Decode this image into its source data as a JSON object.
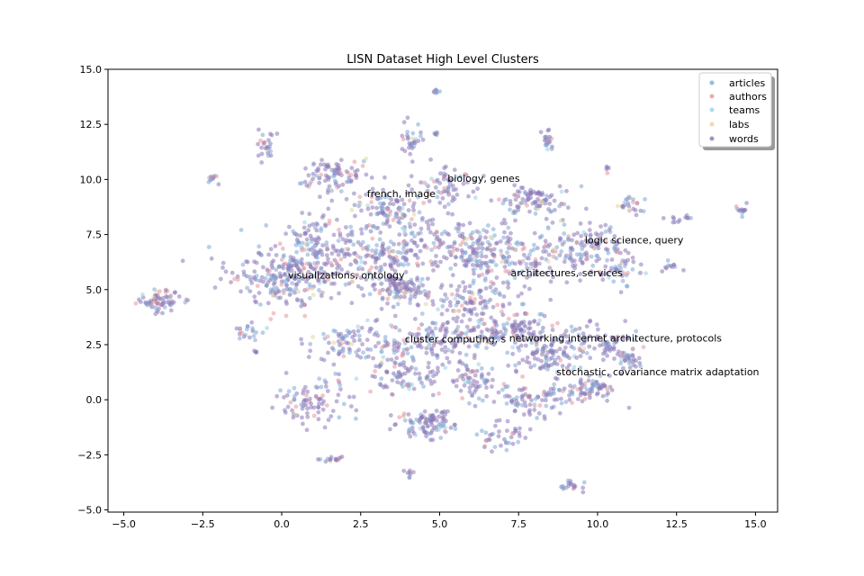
{
  "chart_data": {
    "type": "scatter",
    "title": "LISN Dataset High Level Clusters",
    "xlabel": "",
    "ylabel": "",
    "xlim": [
      -5.5,
      15.7
    ],
    "ylim": [
      -5.1,
      15.0
    ],
    "xticks": [
      -5.0,
      -2.5,
      0.0,
      2.5,
      5.0,
      7.5,
      10.0,
      12.5,
      15.0
    ],
    "yticks": [
      -5.0,
      -2.5,
      0.0,
      2.5,
      5.0,
      7.5,
      10.0,
      12.5,
      15.0
    ],
    "xtick_labels": [
      "−5.0",
      "−2.5",
      "0.0",
      "2.5",
      "5.0",
      "7.5",
      "10.0",
      "12.5",
      "15.0"
    ],
    "ytick_labels": [
      "−5.0",
      "−2.5",
      "0.0",
      "2.5",
      "5.0",
      "7.5",
      "10.0",
      "12.5",
      "15.0"
    ],
    "grid": false,
    "legend_position": "top-right",
    "series": [
      {
        "name": "articles",
        "color": "#7ea8d6"
      },
      {
        "name": "authors",
        "color": "#e8959a"
      },
      {
        "name": "teams",
        "color": "#9ccfe8"
      },
      {
        "name": "labs",
        "color": "#e6d49a"
      },
      {
        "name": "words",
        "color": "#8a78b8"
      }
    ],
    "clusters": [
      {
        "x": -3.9,
        "y": 4.5,
        "sx": 0.35,
        "sy": 0.25,
        "n": 70
      },
      {
        "x": -2.2,
        "y": 10.0,
        "sx": 0.1,
        "sy": 0.1,
        "n": 12
      },
      {
        "x": -0.5,
        "y": 11.5,
        "sx": 0.15,
        "sy": 0.3,
        "n": 25
      },
      {
        "x": 0.0,
        "y": 5.5,
        "sx": 0.9,
        "sy": 0.7,
        "n": 220
      },
      {
        "x": 1.0,
        "y": 7.0,
        "sx": 0.8,
        "sy": 0.7,
        "n": 150
      },
      {
        "x": 1.6,
        "y": 10.2,
        "sx": 0.6,
        "sy": 0.4,
        "n": 90
      },
      {
        "x": 3.4,
        "y": 8.5,
        "sx": 0.6,
        "sy": 0.5,
        "n": 110
      },
      {
        "x": 3.3,
        "y": 6.5,
        "sx": 0.7,
        "sy": 0.6,
        "n": 140
      },
      {
        "x": 3.8,
        "y": 5.0,
        "sx": 0.5,
        "sy": 0.3,
        "n": 110
      },
      {
        "x": 4.1,
        "y": 11.7,
        "sx": 0.2,
        "sy": 0.4,
        "n": 30
      },
      {
        "x": 4.9,
        "y": 14.0,
        "sx": 0.05,
        "sy": 0.05,
        "n": 8
      },
      {
        "x": 4.9,
        "y": 12.1,
        "sx": 0.05,
        "sy": 0.05,
        "n": 6
      },
      {
        "x": 5.3,
        "y": 9.7,
        "sx": 0.5,
        "sy": 0.5,
        "n": 70
      },
      {
        "x": 5.7,
        "y": 7.0,
        "sx": 0.7,
        "sy": 0.6,
        "n": 130
      },
      {
        "x": 6.0,
        "y": 4.5,
        "sx": 0.8,
        "sy": 0.6,
        "n": 120
      },
      {
        "x": 7.5,
        "y": 6.5,
        "sx": 0.9,
        "sy": 0.6,
        "n": 140
      },
      {
        "x": 8.0,
        "y": 9.0,
        "sx": 0.6,
        "sy": 0.4,
        "n": 90
      },
      {
        "x": 8.4,
        "y": 11.8,
        "sx": 0.1,
        "sy": 0.3,
        "n": 20
      },
      {
        "x": 9.5,
        "y": 7.0,
        "sx": 0.6,
        "sy": 0.6,
        "n": 110
      },
      {
        "x": 10.7,
        "y": 6.0,
        "sx": 0.4,
        "sy": 0.4,
        "n": 50
      },
      {
        "x": 11.0,
        "y": 8.8,
        "sx": 0.2,
        "sy": 0.3,
        "n": 25
      },
      {
        "x": 12.4,
        "y": 6.0,
        "sx": 0.2,
        "sy": 0.1,
        "n": 10
      },
      {
        "x": 12.6,
        "y": 8.2,
        "sx": 0.2,
        "sy": 0.1,
        "n": 12
      },
      {
        "x": 14.6,
        "y": 8.6,
        "sx": 0.1,
        "sy": 0.1,
        "n": 12
      },
      {
        "x": 10.3,
        "y": 10.5,
        "sx": 0.05,
        "sy": 0.1,
        "n": 5
      },
      {
        "x": 2.0,
        "y": 2.6,
        "sx": 0.6,
        "sy": 0.5,
        "n": 60
      },
      {
        "x": 3.4,
        "y": 2.2,
        "sx": 0.5,
        "sy": 0.6,
        "n": 80
      },
      {
        "x": 5.2,
        "y": 2.8,
        "sx": 0.7,
        "sy": 0.5,
        "n": 110
      },
      {
        "x": 7.3,
        "y": 3.2,
        "sx": 0.6,
        "sy": 0.4,
        "n": 120
      },
      {
        "x": 8.3,
        "y": 2.0,
        "sx": 0.5,
        "sy": 0.4,
        "n": 90
      },
      {
        "x": 10.0,
        "y": 2.5,
        "sx": 0.7,
        "sy": 0.4,
        "n": 90
      },
      {
        "x": 11.0,
        "y": 1.8,
        "sx": 0.3,
        "sy": 0.2,
        "n": 30
      },
      {
        "x": 1.0,
        "y": 0.0,
        "sx": 0.6,
        "sy": 0.5,
        "n": 90
      },
      {
        "x": 4.0,
        "y": 1.0,
        "sx": 0.5,
        "sy": 0.4,
        "n": 60
      },
      {
        "x": 6.0,
        "y": 1.0,
        "sx": 0.5,
        "sy": 0.4,
        "n": 70
      },
      {
        "x": 8.0,
        "y": 0.0,
        "sx": 0.7,
        "sy": 0.4,
        "n": 90
      },
      {
        "x": 9.8,
        "y": 0.5,
        "sx": 0.5,
        "sy": 0.3,
        "n": 70
      },
      {
        "x": 4.5,
        "y": -1.1,
        "sx": 0.5,
        "sy": 0.3,
        "n": 100
      },
      {
        "x": 7.0,
        "y": -1.7,
        "sx": 0.4,
        "sy": 0.3,
        "n": 40
      },
      {
        "x": 1.7,
        "y": -2.7,
        "sx": 0.3,
        "sy": 0.05,
        "n": 15
      },
      {
        "x": 4.0,
        "y": -3.3,
        "sx": 0.08,
        "sy": 0.1,
        "n": 8
      },
      {
        "x": 9.2,
        "y": -3.9,
        "sx": 0.3,
        "sy": 0.15,
        "n": 18
      },
      {
        "x": -1.0,
        "y": 3.0,
        "sx": 0.3,
        "sy": 0.3,
        "n": 20
      },
      {
        "x": -0.8,
        "y": 2.2,
        "sx": 0.05,
        "sy": 0.05,
        "n": 4
      }
    ],
    "annotations": [
      {
        "text": "biology, genes",
        "x": 5.25,
        "y": 9.9
      },
      {
        "text": "french, image",
        "x": 2.7,
        "y": 9.2
      },
      {
        "text": "logic science, query",
        "x": 9.6,
        "y": 7.1
      },
      {
        "text": "visualizations, ontology",
        "x": 0.2,
        "y": 5.5
      },
      {
        "text": "architectures, services",
        "x": 7.25,
        "y": 5.6
      },
      {
        "text": "cluster computing, s",
        "x": 3.9,
        "y": 2.6
      },
      {
        "text": "networking internet architecture, protocols",
        "x": 7.2,
        "y": 2.65
      },
      {
        "text": "stochastic, covariance matrix adaptation",
        "x": 8.7,
        "y": 1.1
      }
    ]
  }
}
